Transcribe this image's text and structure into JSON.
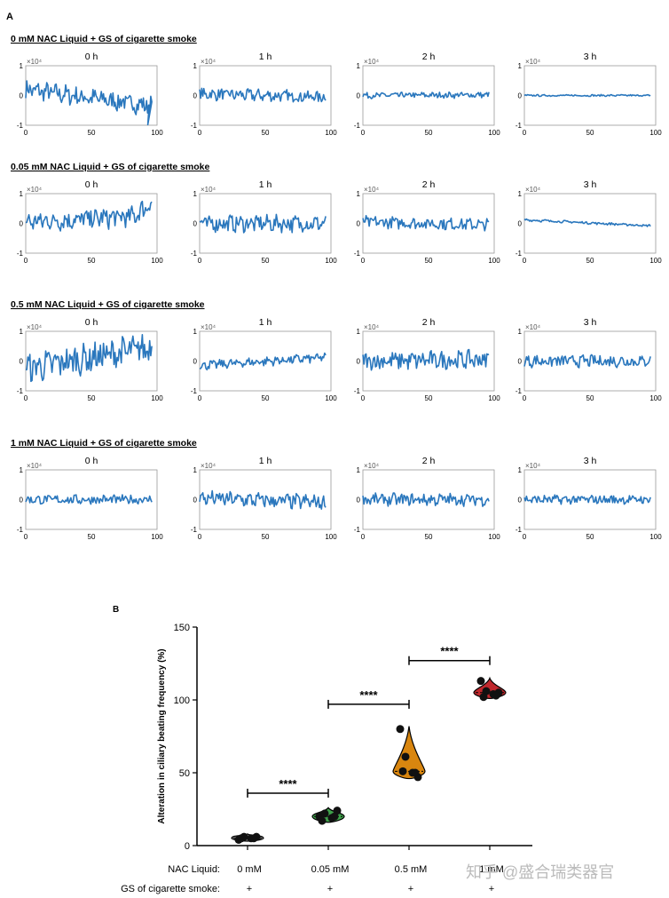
{
  "panel_a_label": "A",
  "panel_b_label": "B",
  "watermark": "知乎 @盛合瑞类器官",
  "chart_data": [
    {
      "type": "line",
      "panel": "A",
      "x_ticks": [
        "0",
        "50",
        "100"
      ],
      "y_ticks": [
        "1",
        "0",
        "-1"
      ],
      "exponent_label": "×10⁴",
      "ylim": [
        -1,
        1
      ],
      "xlim": [
        0,
        100
      ],
      "rows": [
        {
          "title": "0 mM NAC Liquid + GS of cigarette smoke",
          "panels": [
            {
              "time": "0 h",
              "amp": 0.32,
              "trend": [
                0.2,
                -0.35
              ],
              "spike": true
            },
            {
              "time": "1 h",
              "amp": 0.2,
              "trend": [
                0.05,
                -0.05
              ]
            },
            {
              "time": "2 h",
              "amp": 0.1,
              "trend": [
                0.0,
                0.02
              ]
            },
            {
              "time": "3 h",
              "amp": 0.03,
              "trend": [
                0.0,
                0.0
              ]
            }
          ]
        },
        {
          "title": "0.05 mM NAC Liquid + GS of cigarette smoke",
          "panels": [
            {
              "time": "0 h",
              "amp": 0.35,
              "trend": [
                0.05,
                0.25
              ],
              "rise": true
            },
            {
              "time": "1 h",
              "amp": 0.28,
              "trend": [
                0.0,
                0.0
              ]
            },
            {
              "time": "2 h",
              "amp": 0.2,
              "trend": [
                0.05,
                -0.05
              ]
            },
            {
              "time": "3 h",
              "amp": 0.04,
              "trend": [
                0.12,
                -0.08
              ]
            }
          ]
        },
        {
          "title": "0.5 mM NAC Liquid + GS of cigarette smoke",
          "panels": [
            {
              "time": "0 h",
              "amp": 0.5,
              "trend": [
                -0.25,
                0.45
              ]
            },
            {
              "time": "1 h",
              "amp": 0.15,
              "trend": [
                -0.15,
                0.12
              ]
            },
            {
              "time": "2 h",
              "amp": 0.3,
              "trend": [
                0.0,
                0.05
              ]
            },
            {
              "time": "3 h",
              "amp": 0.2,
              "trend": [
                0.0,
                0.0
              ]
            }
          ]
        },
        {
          "title": "1 mM NAC Liquid + GS of cigarette smoke",
          "panels": [
            {
              "time": "0 h",
              "amp": 0.15,
              "trend": [
                0.0,
                0.0
              ]
            },
            {
              "time": "1 h",
              "amp": 0.25,
              "trend": [
                0.05,
                -0.1
              ]
            },
            {
              "time": "2 h",
              "amp": 0.2,
              "trend": [
                0.0,
                0.0
              ]
            },
            {
              "time": "3 h",
              "amp": 0.15,
              "trend": [
                0.0,
                0.0
              ]
            }
          ]
        }
      ]
    },
    {
      "type": "violin",
      "panel": "B",
      "ylabel": "Alteration in ciliary beating frequency (%)",
      "ylim": [
        0,
        150
      ],
      "yticks": [
        0,
        50,
        100,
        150
      ],
      "row_labels": [
        "NAC Liquid:",
        "GS of cigarette smoke:"
      ],
      "categories": [
        "0 mM",
        "0.05 mM",
        "0.5 mM",
        "1 mM"
      ],
      "gs_marks": [
        "+",
        "+",
        "+",
        "+"
      ],
      "colors": [
        "#888888",
        "#3fa04a",
        "#d9860f",
        "#c0282d"
      ],
      "groups": [
        {
          "points": [
            4,
            6,
            5,
            6,
            5,
            5
          ],
          "median": 5
        },
        {
          "points": [
            20,
            22,
            19,
            24,
            17,
            20
          ],
          "median": 20
        },
        {
          "points": [
            80,
            61,
            50,
            47,
            51,
            50
          ],
          "median": 51
        },
        {
          "points": [
            113,
            106,
            104,
            105,
            102,
            103
          ],
          "median": 105
        }
      ],
      "comparisons": [
        {
          "from": 0,
          "to": 1,
          "y": 36,
          "label": "****"
        },
        {
          "from": 1,
          "to": 2,
          "y": 97,
          "label": "****"
        },
        {
          "from": 2,
          "to": 3,
          "y": 127,
          "label": "****"
        }
      ]
    }
  ]
}
